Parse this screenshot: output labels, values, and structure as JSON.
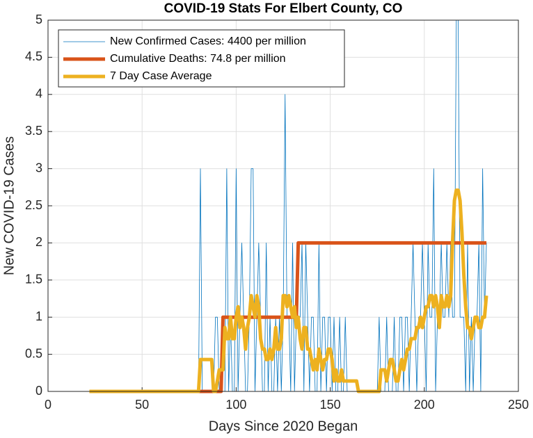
{
  "chart_data": {
    "type": "line",
    "title": "COVID-19 Stats For Elbert County, CO",
    "x_label": "Days Since 2020 Began",
    "y_label": "New COVID-19 Cases",
    "xlim": [
      0,
      250
    ],
    "xticks": [
      0,
      50,
      100,
      150,
      200,
      250
    ],
    "ylim": [
      0,
      5
    ],
    "yticks": [
      0,
      0.5,
      1,
      1.5,
      2,
      2.5,
      3,
      3.5,
      4,
      4.5,
      5
    ],
    "grid": true,
    "legend_position": "upper left",
    "x": [
      22,
      23,
      24,
      25,
      26,
      27,
      28,
      29,
      30,
      31,
      32,
      33,
      34,
      35,
      36,
      37,
      38,
      39,
      40,
      41,
      42,
      43,
      44,
      45,
      46,
      47,
      48,
      49,
      50,
      51,
      52,
      53,
      54,
      55,
      56,
      57,
      58,
      59,
      60,
      61,
      62,
      63,
      64,
      65,
      66,
      67,
      68,
      69,
      70,
      71,
      72,
      73,
      74,
      75,
      76,
      77,
      78,
      79,
      80,
      81,
      82,
      83,
      84,
      85,
      86,
      87,
      88,
      89,
      90,
      91,
      92,
      93,
      94,
      95,
      96,
      97,
      98,
      99,
      100,
      101,
      102,
      103,
      104,
      105,
      106,
      107,
      108,
      109,
      110,
      111,
      112,
      113,
      114,
      115,
      116,
      117,
      118,
      119,
      120,
      121,
      122,
      123,
      124,
      125,
      126,
      127,
      128,
      129,
      130,
      131,
      132,
      133,
      134,
      135,
      136,
      137,
      138,
      139,
      140,
      141,
      142,
      143,
      144,
      145,
      146,
      147,
      148,
      149,
      150,
      151,
      152,
      153,
      154,
      155,
      156,
      157,
      158,
      159,
      160,
      161,
      162,
      163,
      164,
      165,
      166,
      167,
      168,
      169,
      170,
      171,
      172,
      173,
      174,
      175,
      176,
      177,
      178,
      179,
      180,
      181,
      182,
      183,
      184,
      185,
      186,
      187,
      188,
      189,
      190,
      191,
      192,
      193,
      194,
      195,
      196,
      197,
      198,
      199,
      200,
      201,
      202,
      203,
      204,
      205,
      206,
      207,
      208,
      209,
      210,
      211,
      212,
      213,
      214,
      215,
      216,
      217,
      218,
      219,
      220,
      221,
      222,
      223,
      224,
      225,
      226,
      227,
      228,
      229,
      230,
      231,
      232,
      233
    ],
    "series": [
      {
        "name": "New Confirmed Cases: 4400 per million",
        "color": "#0072BD",
        "line_width": 0.8,
        "values": [
          0,
          0,
          0,
          0,
          0,
          0,
          0,
          0,
          0,
          0,
          0,
          0,
          0,
          0,
          0,
          0,
          0,
          0,
          0,
          0,
          0,
          0,
          0,
          0,
          0,
          0,
          0,
          0,
          0,
          0,
          0,
          0,
          0,
          0,
          0,
          0,
          0,
          0,
          0,
          0,
          0,
          0,
          0,
          0,
          0,
          0,
          0,
          0,
          0,
          0,
          0,
          0,
          0,
          0,
          0,
          0,
          0,
          0,
          0,
          3,
          0,
          0,
          0,
          0,
          0,
          0,
          0,
          1,
          1,
          0,
          0,
          0,
          0,
          3,
          0,
          1,
          0,
          0,
          3,
          0,
          1,
          2,
          1,
          0,
          0,
          1,
          3,
          3,
          0,
          1,
          2,
          1,
          0,
          0,
          2,
          0,
          1,
          0,
          0,
          1,
          0,
          1,
          0,
          1,
          4,
          1,
          1,
          0,
          2,
          0,
          1,
          1,
          1,
          2,
          0,
          2,
          1,
          0,
          1,
          1,
          0,
          0,
          2,
          0,
          1,
          1,
          0,
          1,
          1,
          0,
          1,
          0,
          0,
          1,
          0,
          0,
          1,
          0,
          0,
          0,
          0,
          0,
          0,
          0,
          0,
          0,
          0,
          0,
          0,
          0,
          0,
          0,
          0,
          0,
          1,
          0,
          0,
          0,
          1,
          0,
          0,
          0,
          1,
          0,
          0,
          1,
          1,
          0,
          1,
          1,
          0,
          1,
          2,
          1,
          0,
          1,
          1,
          2,
          1,
          0,
          2,
          1,
          1,
          3,
          0,
          1,
          1,
          2,
          1,
          1,
          2,
          1,
          2,
          1,
          1,
          5,
          5,
          1,
          1,
          1,
          0,
          2,
          0,
          1,
          0,
          1,
          1,
          2,
          0,
          3,
          1,
          2
        ]
      },
      {
        "name": "Cumulative Deaths: 74.8 per million",
        "color": "#D95319",
        "line_width": 5,
        "values": [
          0,
          0,
          0,
          0,
          0,
          0,
          0,
          0,
          0,
          0,
          0,
          0,
          0,
          0,
          0,
          0,
          0,
          0,
          0,
          0,
          0,
          0,
          0,
          0,
          0,
          0,
          0,
          0,
          0,
          0,
          0,
          0,
          0,
          0,
          0,
          0,
          0,
          0,
          0,
          0,
          0,
          0,
          0,
          0,
          0,
          0,
          0,
          0,
          0,
          0,
          0,
          0,
          0,
          0,
          0,
          0,
          0,
          0,
          0,
          0,
          0,
          0,
          0,
          0,
          0,
          0,
          0,
          0,
          0,
          0,
          0,
          1,
          1,
          1,
          1,
          1,
          1,
          1,
          1,
          1,
          1,
          1,
          1,
          1,
          1,
          1,
          1,
          1,
          1,
          1,
          1,
          1,
          1,
          1,
          1,
          1,
          1,
          1,
          1,
          1,
          1,
          1,
          1,
          1,
          1,
          1,
          1,
          1,
          1,
          1,
          1,
          2,
          2,
          2,
          2,
          2,
          2,
          2,
          2,
          2,
          2,
          2,
          2,
          2,
          2,
          2,
          2,
          2,
          2,
          2,
          2,
          2,
          2,
          2,
          2,
          2,
          2,
          2,
          2,
          2,
          2,
          2,
          2,
          2,
          2,
          2,
          2,
          2,
          2,
          2,
          2,
          2,
          2,
          2,
          2,
          2,
          2,
          2,
          2,
          2,
          2,
          2,
          2,
          2,
          2,
          2,
          2,
          2,
          2,
          2,
          2,
          2,
          2,
          2,
          2,
          2,
          2,
          2,
          2,
          2,
          2,
          2,
          2,
          2,
          2,
          2,
          2,
          2,
          2,
          2,
          2,
          2,
          2,
          2,
          2,
          2,
          2,
          2,
          2,
          2,
          2,
          2,
          2,
          2,
          2,
          2,
          2,
          2,
          2,
          2,
          2,
          2
        ]
      },
      {
        "name": "7 Day Case Average",
        "color": "#EDB120",
        "line_width": 5,
        "values": [
          0,
          0,
          0,
          0,
          0,
          0,
          0,
          0,
          0,
          0,
          0,
          0,
          0,
          0,
          0,
          0,
          0,
          0,
          0,
          0,
          0,
          0,
          0,
          0,
          0,
          0,
          0,
          0,
          0,
          0,
          0,
          0,
          0,
          0,
          0,
          0,
          0,
          0,
          0,
          0,
          0,
          0,
          0,
          0,
          0,
          0,
          0,
          0,
          0,
          0,
          0,
          0,
          0,
          0,
          0,
          0,
          0,
          0,
          0,
          0.43,
          0.43,
          0.43,
          0.43,
          0.43,
          0.43,
          0.43,
          0,
          0,
          0.14,
          0.29,
          0.29,
          0.29,
          0.86,
          0.71,
          0.71,
          1,
          0.71,
          0.71,
          1,
          1.14,
          0.86,
          1,
          0.86,
          0.57,
          0.86,
          1,
          1.29,
          1.14,
          1,
          1.29,
          1.14,
          0.71,
          0.57,
          0.57,
          0.43,
          0.43,
          0.57,
          0.43,
          0.57,
          0.86,
          0.57,
          0.57,
          0.71,
          1.29,
          1.29,
          1.14,
          1.29,
          1.14,
          1,
          1.14,
          0.86,
          1,
          0.71,
          0.57,
          0.86,
          0.86,
          0.57,
          0.57,
          0.43,
          0.29,
          0.43,
          0.29,
          0.57,
          0.43,
          0.29,
          0.43,
          0.43,
          0.57,
          0.57,
          0.43,
          0.14,
          0.29,
          0.14,
          0.14,
          0.29,
          0.14,
          0.14,
          0.14,
          0.14,
          0.14,
          0.14,
          0.14,
          0.14,
          0,
          0,
          0,
          0,
          0,
          0,
          0,
          0,
          0,
          0,
          0,
          0,
          0.29,
          0.29,
          0.29,
          0.14,
          0.29,
          0.43,
          0.43,
          0.29,
          0.14,
          0.14,
          0.29,
          0.43,
          0.29,
          0.43,
          0.57,
          0.57,
          0.71,
          0.71,
          0.71,
          0.86,
          0.86,
          1,
          0.86,
          1,
          1.14,
          1.14,
          1.29,
          1.29,
          1.14,
          1.29,
          1.14,
          0.86,
          1.29,
          1.14,
          1.14,
          1.29,
          1.14,
          1.29,
          2,
          2.57,
          2.71,
          2.71,
          2.57,
          2.14,
          1.57,
          1.14,
          0.86,
          0.86,
          0.71,
          0.86,
          1,
          1,
          0.86,
          0.86,
          1,
          1,
          1.29
        ]
      }
    ]
  }
}
